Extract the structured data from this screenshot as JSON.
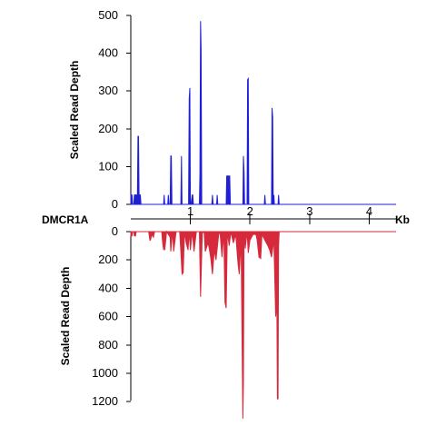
{
  "gene_label": "DMCR1A",
  "x_axis_unit": "Kb",
  "chart_data": [
    {
      "type": "area",
      "panel": "top",
      "ylabel": "Scaled Read Depth",
      "ylim": [
        0,
        500
      ],
      "yticks": [
        "0",
        "100",
        "200",
        "300",
        "400",
        "500"
      ],
      "xlim": [
        0,
        4.45
      ],
      "xticks": [
        "1",
        "2",
        "3",
        "4"
      ],
      "color": "#1f1fd6",
      "series": [
        {
          "x": [
            0,
            0.02,
            0.03,
            0.05,
            0.06,
            0.1,
            0.11,
            0.12,
            0.13,
            0.14,
            0.15,
            0.16,
            0.17,
            0.55,
            0.56,
            0.57,
            0.62,
            0.63,
            0.64,
            0.66,
            0.67,
            0.68,
            0.69,
            0.84,
            0.85,
            0.86,
            0.87,
            0.97,
            0.98,
            0.99,
            1.0,
            1.01,
            1.03,
            1.04,
            1.05,
            1.15,
            1.16,
            1.17,
            1.18,
            1.19,
            1.2,
            1.21,
            1.22,
            1.36,
            1.37,
            1.38,
            1.44,
            1.45,
            1.46,
            1.6,
            1.61,
            1.66,
            1.67,
            1.88,
            1.89,
            1.9,
            1.91,
            1.92,
            1.95,
            1.96,
            1.97,
            1.98,
            1.99,
            2.24,
            2.25,
            2.26,
            2.36,
            2.37,
            2.38,
            2.39,
            2.4,
            2.41,
            2.47,
            2.48,
            2.49,
            4.45
          ],
          "y": [
            25,
            25,
            0,
            0,
            25,
            25,
            0,
            180,
            180,
            0,
            25,
            25,
            0,
            0,
            25,
            0,
            0,
            25,
            0,
            0,
            128,
            128,
            0,
            0,
            128,
            0,
            0,
            0,
            280,
            308,
            0,
            0,
            25,
            25,
            0,
            0,
            80,
            485,
            410,
            0,
            0,
            0,
            0,
            0,
            25,
            0,
            0,
            25,
            0,
            0,
            75,
            75,
            0,
            0,
            128,
            85,
            0,
            0,
            0,
            330,
            333,
            0,
            0,
            0,
            25,
            0,
            0,
            255,
            230,
            0,
            25,
            0,
            0,
            25,
            0,
            0
          ]
        }
      ]
    },
    {
      "type": "area",
      "panel": "bottom",
      "ylabel": "Scaled Read Depth",
      "ylim": [
        0,
        1300
      ],
      "yticks": [
        "0",
        "200",
        "400",
        "600",
        "800",
        "1000",
        "1200"
      ],
      "xlim": [
        0,
        4.45
      ],
      "color": "#d62a3c",
      "series": [
        {
          "x": [
            0,
            0.02,
            0.03,
            0.05,
            0.06,
            0.08,
            0.09,
            0.3,
            0.32,
            0.33,
            0.35,
            0.38,
            0.4,
            0.52,
            0.53,
            0.55,
            0.56,
            0.57,
            0.6,
            0.66,
            0.67,
            0.7,
            0.72,
            0.76,
            0.82,
            0.84,
            0.86,
            0.88,
            0.9,
            0.93,
            0.96,
            0.98,
            1.0,
            1.03,
            1.06,
            1.1,
            1.15,
            1.17,
            1.2,
            1.23,
            1.25,
            1.28,
            1.3,
            1.34,
            1.37,
            1.4,
            1.43,
            1.48,
            1.5,
            1.53,
            1.56,
            1.58,
            1.6,
            1.62,
            1.65,
            1.68,
            1.72,
            1.76,
            1.8,
            1.82,
            1.85,
            1.87,
            1.88,
            1.89,
            1.9,
            1.92,
            1.95,
            1.97,
            2.0,
            2.05,
            2.1,
            2.12,
            2.15,
            2.18,
            2.2,
            2.25,
            2.3,
            2.33,
            2.36,
            2.4,
            2.43,
            2.45,
            2.46,
            2.47,
            2.48,
            2.49,
            2.5,
            4.45
          ],
          "y": [
            30,
            30,
            0,
            0,
            30,
            30,
            0,
            0,
            60,
            60,
            20,
            40,
            0,
            0,
            60,
            130,
            10,
            130,
            0,
            40,
            140,
            0,
            140,
            0,
            0,
            140,
            300,
            290,
            0,
            80,
            130,
            0,
            130,
            0,
            140,
            0,
            0,
            460,
            10,
            0,
            140,
            100,
            80,
            180,
            300,
            130,
            200,
            0,
            20,
            180,
            0,
            500,
            540,
            0,
            100,
            0,
            80,
            20,
            230,
            300,
            60,
            900,
            1320,
            1050,
            0,
            120,
            0,
            150,
            60,
            20,
            20,
            60,
            180,
            190,
            20,
            60,
            100,
            130,
            180,
            60,
            600,
            500,
            1180,
            1180,
            100,
            0,
            0,
            0
          ]
        }
      ]
    }
  ]
}
